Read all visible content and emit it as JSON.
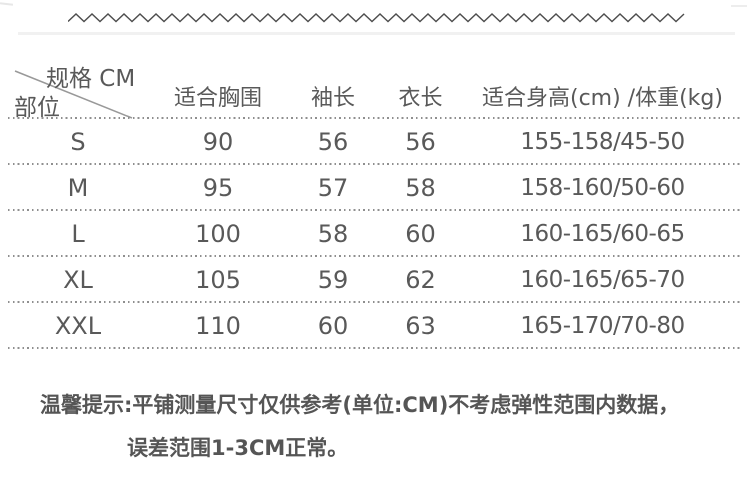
{
  "meta": {
    "background": "#ffffff",
    "text_color": "#595959",
    "dotted_line_color": "#8f8f8f",
    "diagonal_line_color": "#999999",
    "zigzag_color": "#4d4d4d",
    "unit": "CM"
  },
  "chart_data": {
    "type": "table",
    "corner": {
      "top_right_label": "规格 CM",
      "bottom_left_label": "部位"
    },
    "columns": [
      "适合胸围",
      "袖长",
      "衣长",
      "适合身高(cm) /体重(kg)"
    ],
    "rows": [
      {
        "size": "S",
        "values": [
          "90",
          "56",
          "56",
          "155-158/45-50"
        ]
      },
      {
        "size": "M",
        "values": [
          "95",
          "57",
          "58",
          "158-160/50-60"
        ]
      },
      {
        "size": "L",
        "values": [
          "100",
          "58",
          "60",
          "160-165/60-65"
        ]
      },
      {
        "size": "XL",
        "values": [
          "105",
          "59",
          "62",
          "160-165/65-70"
        ]
      },
      {
        "size": "XXL",
        "values": [
          "110",
          "60",
          "63",
          "165-170/70-80"
        ]
      }
    ]
  },
  "note": {
    "line1": "温馨提示:平铺测量尺寸仅供参考(单位:CM)不考虑弹性范围内数据，",
    "line2": "误差范围1-3CM正常。"
  }
}
